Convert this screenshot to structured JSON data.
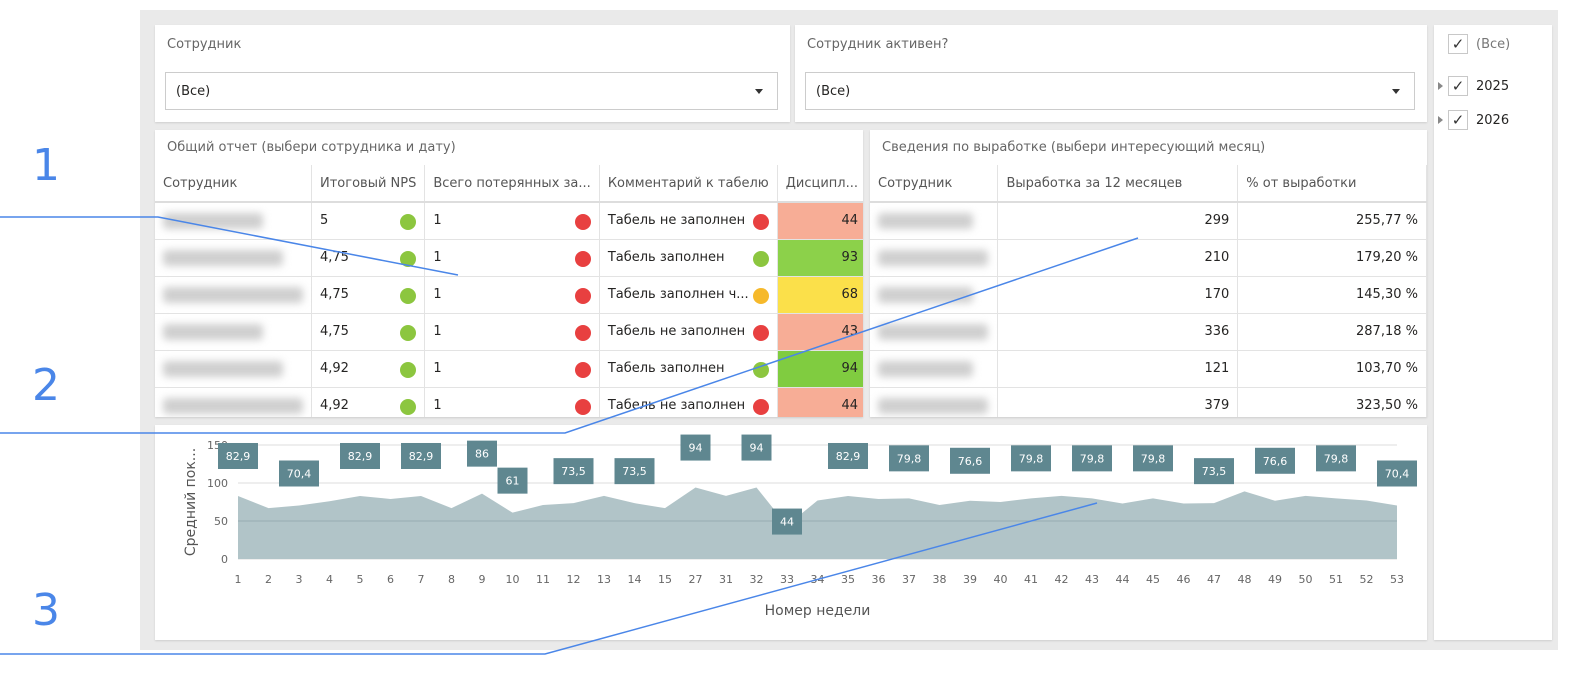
{
  "filters": [
    {
      "label": "Сотрудник",
      "value": "(Все)"
    },
    {
      "label": "Сотрудник активен?",
      "value": "(Все)"
    }
  ],
  "slicer": {
    "items": [
      {
        "label": "(Все)",
        "checked": true
      },
      {
        "label": "2025",
        "checked": true,
        "expandable": true
      },
      {
        "label": "2026",
        "checked": true,
        "expandable": true
      }
    ]
  },
  "report": {
    "title": "Общий отчет (выбери сотрудника и дату)",
    "columns": [
      "Сотрудник",
      "Итоговый NPS",
      "Всего потерянных за...",
      "Комментарий к табелю",
      "Дисципл..."
    ],
    "rows": [
      {
        "nps": "5",
        "nps_status": "#8cc63f",
        "lost": "1",
        "lost_status": "#e84040",
        "comment": "Табель не заполнен",
        "comment_status": "#e84040",
        "discipline": "44",
        "discipline_bg": "#f7ad96"
      },
      {
        "nps": "4,75",
        "nps_status": "#8cc63f",
        "lost": "1",
        "lost_status": "#e84040",
        "comment": "Табель заполнен",
        "comment_status": "#8cc63f",
        "discipline": "93",
        "discipline_bg": "#8cd14a"
      },
      {
        "nps": "4,75",
        "nps_status": "#8cc63f",
        "lost": "1",
        "lost_status": "#e84040",
        "comment": "Табель заполнен ч...",
        "comment_status": "#f6b92b",
        "discipline": "68",
        "discipline_bg": "#fbe04a"
      },
      {
        "nps": "4,75",
        "nps_status": "#8cc63f",
        "lost": "1",
        "lost_status": "#e84040",
        "comment": "Табель не заполнен",
        "comment_status": "#e84040",
        "discipline": "43",
        "discipline_bg": "#f7ad96"
      },
      {
        "nps": "4,92",
        "nps_status": "#8cc63f",
        "lost": "1",
        "lost_status": "#e84040",
        "comment": "Табель заполнен",
        "comment_status": "#8cc63f",
        "discipline": "94",
        "discipline_bg": "#80cc40"
      },
      {
        "nps": "4,92",
        "nps_status": "#8cc63f",
        "lost": "1",
        "lost_status": "#e84040",
        "comment": "Табель не заполнен",
        "comment_status": "#e84040",
        "discipline": "44",
        "discipline_bg": "#f7ad96"
      }
    ]
  },
  "output": {
    "title": "Сведения по выработке (выбери интересующий месяц)",
    "columns": [
      "Сотрудник",
      "Выработка за 12 месяцев",
      "% от выработки"
    ],
    "rows": [
      {
        "value": "299",
        "pct": "255,77 %"
      },
      {
        "value": "210",
        "pct": "179,20 %"
      },
      {
        "value": "170",
        "pct": "145,30 %"
      },
      {
        "value": "336",
        "pct": "287,18 %"
      },
      {
        "value": "121",
        "pct": "103,70 %"
      },
      {
        "value": "379",
        "pct": "323,50 %"
      }
    ]
  },
  "annotations": [
    "1",
    "2",
    "3"
  ],
  "chart_data": {
    "type": "area",
    "xlabel": "Номер недели",
    "ylabel": "Средний пок...",
    "ylim": [
      0,
      150
    ],
    "yticks": [
      0,
      50,
      100,
      150
    ],
    "grid": true,
    "color": "#b1c4c8",
    "label_color": "#5f8790",
    "categories": [
      "1",
      "2",
      "3",
      "4",
      "5",
      "6",
      "7",
      "8",
      "9",
      "10",
      "11",
      "12",
      "13",
      "14",
      "15",
      "27",
      "31",
      "32",
      "33",
      "34",
      "35",
      "36",
      "37",
      "38",
      "39",
      "40",
      "41",
      "42",
      "43",
      "44",
      "45",
      "46",
      "47",
      "48",
      "49",
      "50",
      "51",
      "52",
      "53"
    ],
    "values": [
      82.9,
      67,
      70.4,
      76,
      82.9,
      79,
      82.9,
      67,
      86,
      61,
      71,
      73.5,
      83,
      73.5,
      67,
      94,
      83,
      94,
      44,
      77,
      82.9,
      79,
      79.8,
      71,
      76.6,
      75,
      79.8,
      83,
      79.8,
      73,
      79.8,
      73,
      73.5,
      89,
      76.6,
      83,
      79.8,
      77,
      70.4
    ],
    "data_labels": [
      "82,9",
      null,
      "70,4",
      null,
      "82,9",
      null,
      "82,9",
      null,
      "86",
      "61",
      null,
      "73,5",
      null,
      "73,5",
      null,
      "94",
      null,
      "94",
      "44",
      null,
      "82,9",
      null,
      "79,8",
      null,
      "76,6",
      null,
      "79,8",
      null,
      "79,8",
      null,
      "79,8",
      null,
      "73,5",
      null,
      "76,6",
      null,
      "79,8",
      null,
      "70,4"
    ]
  }
}
